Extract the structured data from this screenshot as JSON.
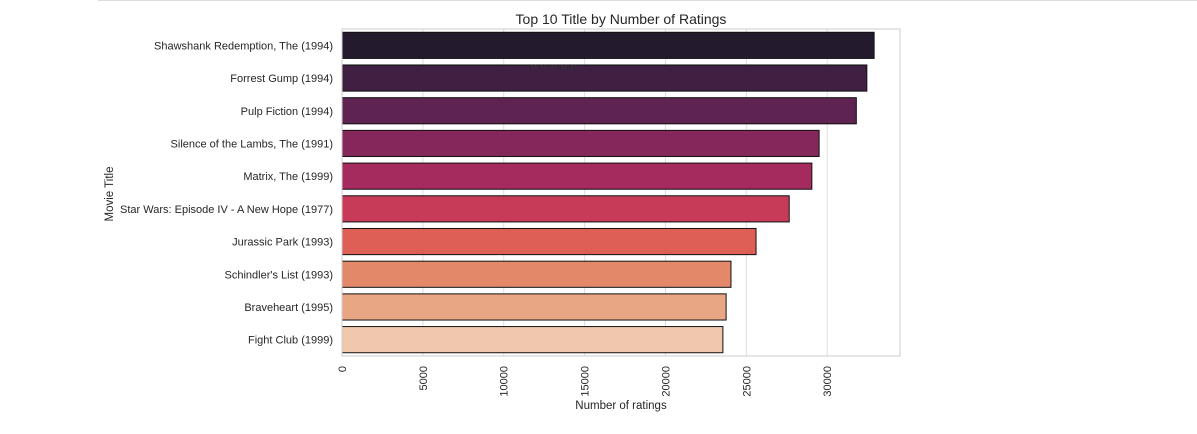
{
  "chart_data": {
    "type": "bar",
    "orientation": "horizontal",
    "title": "Top 10 Title by Number of Ratings",
    "xlabel": "Number of ratings",
    "ylabel": "Movie Title",
    "xlim": [
      0,
      34500
    ],
    "xticks": [
      0,
      5000,
      10000,
      15000,
      20000,
      25000,
      30000
    ],
    "grid": true,
    "categories": [
      "Shawshank Redemption, The (1994)",
      "Forrest Gump (1994)",
      "Pulp Fiction (1994)",
      "Silence of the Lambs, The (1991)",
      "Matrix, The (1999)",
      "Star Wars: Episode IV - A New Hope (1977)",
      "Jurassic Park (1993)",
      "Schindler's List (1993)",
      "Braveheart (1995)",
      "Fight Club (1999)"
    ],
    "values": [
      32900,
      32450,
      31800,
      29500,
      29050,
      27650,
      25600,
      24050,
      23750,
      23550
    ],
    "colors": [
      "#231a2e",
      "#3f1f42",
      "#5f2352",
      "#85275b",
      "#a52a5d",
      "#c73a58",
      "#dd5f55",
      "#e3896a",
      "#e9a685",
      "#efc8ae"
    ],
    "annotation": "⊕ ⊖ ⊕ ⊕ ⊕"
  }
}
